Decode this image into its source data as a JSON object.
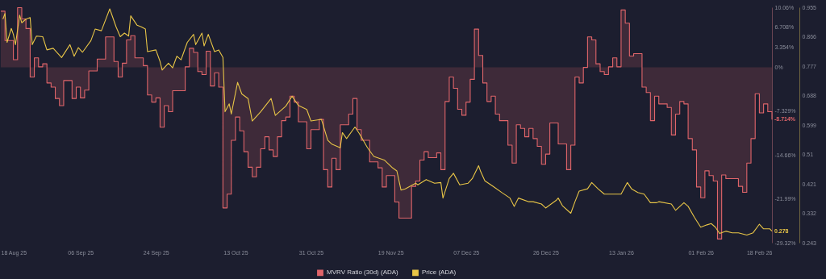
{
  "chart_data": {
    "type": "line",
    "legend": "bottom",
    "grid": false,
    "xlim": [
      "2025-08-18",
      "2026-02-18"
    ],
    "xticks": [
      {
        "value": "2025-08-18",
        "label": "18 Aug 25"
      },
      {
        "value": "2025-09-06",
        "label": "06 Sep 25"
      },
      {
        "value": "2025-09-24",
        "label": "24 Sep 25"
      },
      {
        "value": "2025-10-13",
        "label": "13 Oct 25"
      },
      {
        "value": "2025-10-31",
        "label": "31 Oct 25"
      },
      {
        "value": "2025-11-19",
        "label": "19 Nov 25"
      },
      {
        "value": "2025-12-07",
        "label": "07 Dec 25"
      },
      {
        "value": "2025-12-26",
        "label": "26 Dec 25"
      },
      {
        "value": "2026-01-13",
        "label": "13 Jan 26"
      },
      {
        "value": "2026-02-01",
        "label": "01 Feb 26"
      },
      {
        "value": "2026-02-18",
        "label": "18 Feb 26"
      }
    ],
    "ylim": [
      -29.32,
      10.06
    ],
    "yticks": [
      {
        "value": 10.06,
        "label": "10.06%"
      },
      {
        "value": 6.708,
        "label": "6.708%"
      },
      {
        "value": 3.354,
        "label": "3.354%"
      },
      {
        "value": 0,
        "label": "0%"
      },
      {
        "value": -7.329,
        "label": "-7.329%"
      },
      {
        "value": -14.66,
        "label": "-14.66%"
      },
      {
        "value": -21.99,
        "label": "-21.99%"
      },
      {
        "value": -29.32,
        "label": "-29.32%"
      }
    ],
    "y2lim": [
      0.243,
      0.955
    ],
    "y2ticks": [
      0.955,
      0.866,
      0.777,
      0.688,
      0.599,
      0.51,
      0.421,
      0.332,
      0.243
    ],
    "series": [
      {
        "name": "MVRV Ratio (30d) (ADA)",
        "type": "step",
        "color": "#e0656a",
        "x": [
          "2025-08-18",
          "2025-08-19",
          "2025-08-21",
          "2025-08-22",
          "2025-08-23",
          "2025-08-24",
          "2025-08-25",
          "2025-08-26",
          "2025-08-27",
          "2025-08-28",
          "2025-08-29",
          "2025-08-30",
          "2025-08-31",
          "2025-09-01",
          "2025-09-02",
          "2025-09-04",
          "2025-09-05",
          "2025-09-06",
          "2025-09-07",
          "2025-09-08",
          "2025-09-10",
          "2025-09-12",
          "2025-09-14",
          "2025-09-15",
          "2025-09-16",
          "2025-09-17",
          "2025-09-18",
          "2025-09-19",
          "2025-09-21",
          "2025-09-22",
          "2025-09-23",
          "2025-09-24",
          "2025-09-25",
          "2025-09-26",
          "2025-09-27",
          "2025-09-28",
          "2025-10-01",
          "2025-10-02",
          "2025-10-03",
          "2025-10-04",
          "2025-10-05",
          "2025-10-06",
          "2025-10-07",
          "2025-10-08",
          "2025-10-09",
          "2025-10-10",
          "2025-10-11",
          "2025-10-12",
          "2025-10-13",
          "2025-10-14",
          "2025-10-15",
          "2025-10-16",
          "2025-10-17",
          "2025-10-18",
          "2025-10-19",
          "2025-10-20",
          "2025-10-21",
          "2025-10-22",
          "2025-10-23",
          "2025-10-24",
          "2025-10-25",
          "2025-10-26",
          "2025-10-27",
          "2025-10-28",
          "2025-10-30",
          "2025-10-31",
          "2025-11-02",
          "2025-11-03",
          "2025-11-04",
          "2025-11-05",
          "2025-11-06",
          "2025-11-07",
          "2025-11-09",
          "2025-11-10",
          "2025-11-11",
          "2025-11-12",
          "2025-11-14",
          "2025-11-16",
          "2025-11-17",
          "2025-11-18",
          "2025-11-20",
          "2025-11-21",
          "2025-11-24",
          "2025-11-25",
          "2025-11-26",
          "2025-11-27",
          "2025-11-28",
          "2025-11-30",
          "2025-12-01",
          "2025-12-02",
          "2025-12-03",
          "2025-12-04",
          "2025-12-05",
          "2025-12-06",
          "2025-12-07",
          "2025-12-08",
          "2025-12-09",
          "2025-12-10",
          "2025-12-11",
          "2025-12-12",
          "2025-12-13",
          "2025-12-14",
          "2025-12-15",
          "2025-12-17",
          "2025-12-18",
          "2025-12-19",
          "2025-12-20",
          "2025-12-21",
          "2025-12-22",
          "2025-12-23",
          "2025-12-24",
          "2025-12-25",
          "2025-12-26",
          "2025-12-27",
          "2025-12-29",
          "2025-12-31",
          "2026-01-01",
          "2026-01-02",
          "2026-01-03",
          "2026-01-04",
          "2026-01-05",
          "2026-01-06",
          "2026-01-07",
          "2026-01-08",
          "2026-01-09",
          "2026-01-10",
          "2026-01-11",
          "2026-01-12",
          "2026-01-13",
          "2026-01-14",
          "2026-01-15",
          "2026-01-16",
          "2026-01-18",
          "2026-01-19",
          "2026-01-20",
          "2026-01-21",
          "2026-01-22",
          "2026-01-24",
          "2026-01-25",
          "2026-01-26",
          "2026-01-27",
          "2026-01-28",
          "2026-01-29",
          "2026-01-30",
          "2026-01-31",
          "2026-02-01",
          "2026-02-02",
          "2026-02-03",
          "2026-02-04",
          "2026-02-05",
          "2026-02-06",
          "2026-02-07",
          "2026-02-10",
          "2026-02-11",
          "2026-02-12",
          "2026-02-13",
          "2026-02-14",
          "2026-02-15",
          "2026-02-16",
          "2026-02-17",
          "2026-02-18"
        ],
        "values": [
          9.4,
          4.5,
          1.3,
          10.0,
          8.1,
          6.5,
          -1.6,
          1.6,
          0.1,
          0.6,
          -2.6,
          -3.3,
          -5.2,
          -6.4,
          -2.2,
          -5.2,
          -3.3,
          -5.1,
          -3.8,
          -0.6,
          1.4,
          5.1,
          1.0,
          -1.6,
          0.7,
          4.6,
          5.3,
          1.6,
          0.3,
          -4.6,
          -5.8,
          -5.1,
          -10.0,
          -6.4,
          -7.4,
          -3.9,
          0.1,
          3.2,
          2.5,
          -0.7,
          -1.2,
          2.7,
          -3.1,
          -0.9,
          -3.3,
          -23.5,
          -21.2,
          -12.2,
          -8.3,
          -10.6,
          -14.1,
          -16.7,
          -18.3,
          -16.7,
          -13.6,
          -11.6,
          -13.8,
          -14.9,
          -11.6,
          -8.9,
          -8.3,
          -4.8,
          -5.8,
          -9.1,
          -13.6,
          -10.4,
          -8.7,
          -17.1,
          -20.0,
          -15.2,
          -17.1,
          -9.6,
          -7.8,
          -5.2,
          -10.4,
          -12.2,
          -15.8,
          -16.8,
          -20.0,
          -18.1,
          -22.5,
          -25.2,
          -19.9,
          -19.0,
          -15.5,
          -14.1,
          -15.1,
          -14.3,
          -17.1,
          -5.7,
          -1.6,
          -3.5,
          -7.0,
          -8.0,
          -5.8,
          -2.0,
          6.4,
          2.0,
          -2.6,
          -5.7,
          -4.8,
          -7.8,
          -8.9,
          -13.0,
          -16.0,
          -9.6,
          -10.2,
          -11.6,
          -10.2,
          -11.9,
          -13.2,
          -16.2,
          -14.5,
          -9.3,
          -12.8,
          -17.1,
          -13.0,
          -1.6,
          -2.6,
          0,
          5.1,
          4.6,
          0.6,
          -0.7,
          -1.2,
          0.1,
          1.6,
          0.1,
          9.6,
          7.4,
          1.9,
          2.3,
          -3.3,
          -4.2,
          -8.9,
          -4.8,
          -6.1,
          -6.7,
          -11.3,
          -7.8,
          -5.7,
          -6.1,
          -11.9,
          -13.8,
          -20.0,
          -21.8,
          -17.3,
          -18.1,
          -19.0,
          -28.7,
          -18.0,
          -18.6,
          -19.9,
          -20.9,
          -16.0,
          -11.9,
          -4.4,
          -7.6,
          -6.1,
          -7.4,
          -8.714
        ],
        "value_labels": [
          null,
          null,
          null,
          null,
          null,
          null,
          null,
          null,
          null,
          null,
          null,
          null,
          null,
          null,
          null,
          null,
          null,
          null,
          null,
          null,
          null,
          null,
          null,
          null,
          null,
          null,
          null,
          null,
          null,
          null,
          null,
          null,
          null,
          null,
          null,
          null,
          null,
          null,
          null,
          null,
          null,
          null,
          null,
          null,
          null,
          null,
          null,
          null,
          null,
          null,
          null,
          null,
          null,
          null,
          null,
          null,
          null,
          null,
          null,
          null,
          null,
          null,
          null,
          null,
          null,
          null,
          null,
          null,
          null,
          null,
          null,
          null,
          null,
          null,
          null,
          null,
          null,
          null,
          null,
          null,
          null,
          null,
          null,
          null,
          null,
          null,
          null,
          null,
          null,
          null,
          null,
          null,
          null,
          null,
          null,
          null,
          null,
          null,
          null,
          null,
          null,
          null,
          null,
          null,
          null,
          null,
          null,
          null,
          null,
          null,
          null,
          null,
          null,
          null,
          null,
          null,
          null,
          null,
          null,
          null,
          null,
          null,
          null,
          null,
          null,
          null,
          null,
          null,
          null,
          null,
          null,
          null,
          null,
          null,
          null,
          null,
          null,
          null,
          null,
          null,
          null,
          null,
          null,
          null,
          null,
          null,
          null,
          null,
          null,
          null,
          null,
          null,
          null,
          null,
          null,
          null,
          null,
          null,
          null,
          null,
          "-8.714%"
        ]
      },
      {
        "name": "Price (ADA)",
        "axis": "y2",
        "color": "#e8c547",
        "x": [
          "2025-08-18T12:00",
          "2025-08-19",
          "2025-08-19T12:00",
          "2025-08-20T12:00",
          "2025-08-21",
          "2025-08-21T12:00",
          "2025-08-22T12:00",
          "2025-08-23",
          "2025-08-24",
          "2025-08-25",
          "2025-08-25T12:00",
          "2025-08-26T12:00",
          "2025-08-28",
          "2025-08-29",
          "2025-08-30T12:00",
          "2025-09-01T12:00",
          "2025-09-03T12:00",
          "2025-09-04T12:00",
          "2025-09-05T12:00",
          "2025-09-06T12:00",
          "2025-09-08T12:00",
          "2025-09-09T12:00",
          "2025-09-11",
          "2025-09-13",
          "2025-09-14T12:00",
          "2025-09-15T12:00",
          "2025-09-16T12:00",
          "2025-09-17T12:00",
          "2025-09-18",
          "2025-09-19T12:00",
          "2025-09-20T12:00",
          "2025-09-21T12:00",
          "2025-09-22",
          "2025-09-24",
          "2025-09-25",
          "2025-09-25T12:00",
          "2025-09-27",
          "2025-09-28",
          "2025-09-29",
          "2025-09-30",
          "2025-10-01T12:00",
          "2025-10-03",
          "2025-10-03T12:00",
          "2025-10-05",
          "2025-10-05T12:00",
          "2025-10-06T12:00",
          "2025-10-08",
          "2025-10-09",
          "2025-10-10",
          "2025-10-10T12:00",
          "2025-10-11T12:00",
          "2025-10-12",
          "2025-10-13T12:00",
          "2025-10-14T12:00",
          "2025-10-16",
          "2025-10-17",
          "2025-10-19",
          "2025-10-21T12:00",
          "2025-10-22T12:00",
          "2025-10-25",
          "2025-10-26T12:00",
          "2025-10-28",
          "2025-10-30",
          "2025-10-31",
          "2025-11-02T12:00",
          "2025-11-04",
          "2025-11-05",
          "2025-11-07",
          "2025-11-07T12:00",
          "2025-11-08T12:00",
          "2025-11-10T12:00",
          "2025-11-11T12:00",
          "2025-11-13T12:00",
          "2025-11-15",
          "2025-11-17T12:00",
          "2025-11-19T12:00",
          "2025-11-20T12:00",
          "2025-11-21T12:00",
          "2025-11-22T12:00",
          "2025-11-25",
          "2025-11-25T12:00",
          "2025-11-27T12:00",
          "2025-11-29T12:00",
          "2025-12-01",
          "2025-12-01T12:00",
          "2025-12-03",
          "2025-12-04",
          "2025-12-05T12:00",
          "2025-12-07T12:00",
          "2025-12-08T12:00",
          "2025-12-10",
          "2025-12-10T12:00",
          "2025-12-11T12:00",
          "2025-12-13T12:00",
          "2025-12-15T12:00",
          "2025-12-17T12:00",
          "2025-12-18T12:00",
          "2025-12-19T12:00",
          "2025-12-22",
          "2025-12-23",
          "2025-12-25",
          "2025-12-26",
          "2025-12-28T12:00",
          "2025-12-29",
          "2025-12-30",
          "2026-01-01",
          "2026-01-02",
          "2026-01-03",
          "2026-01-05",
          "2026-01-06",
          "2026-01-07T12:00",
          "2026-01-09",
          "2026-01-11T12:00",
          "2026-01-13",
          "2026-01-14T12:00",
          "2026-01-15T12:00",
          "2026-01-17",
          "2026-01-18T12:00",
          "2026-01-20",
          "2026-01-21T12:00",
          "2026-01-22",
          "2026-01-25",
          "2026-01-26",
          "2026-01-28",
          "2026-01-29",
          "2026-01-30T12:00",
          "2026-02-01",
          "2026-02-02T12:00",
          "2026-02-03T12:00",
          "2026-02-04T12:00",
          "2026-02-05T12:00",
          "2026-02-07",
          "2026-02-08T12:00",
          "2026-02-10",
          "2026-02-12",
          "2026-02-13T12:00",
          "2026-02-15",
          "2026-02-16",
          "2026-02-17T12:00",
          "2026-02-18"
        ],
        "values": [
          0.919,
          0.936,
          0.849,
          0.891,
          0.873,
          0.842,
          0.931,
          0.908,
          0.919,
          0.924,
          0.842,
          0.868,
          0.866,
          0.826,
          0.831,
          0.803,
          0.842,
          0.807,
          0.833,
          0.819,
          0.854,
          0.889,
          0.884,
          0.95,
          0.896,
          0.866,
          0.877,
          0.868,
          0.929,
          0.901,
          0.896,
          0.889,
          0.821,
          0.826,
          0.791,
          0.765,
          0.786,
          0.772,
          0.807,
          0.796,
          0.849,
          0.873,
          0.842,
          0.877,
          0.838,
          0.873,
          0.821,
          0.826,
          0.803,
          0.639,
          0.663,
          0.632,
          0.728,
          0.693,
          0.679,
          0.611,
          0.639,
          0.679,
          0.628,
          0.656,
          0.686,
          0.658,
          0.646,
          0.611,
          0.616,
          0.553,
          0.541,
          0.53,
          0.576,
          0.558,
          0.593,
          0.574,
          0.53,
          0.504,
          0.493,
          0.469,
          0.46,
          0.402,
          0.406,
          0.423,
          0.418,
          0.434,
          0.423,
          0.425,
          0.378,
          0.437,
          0.453,
          0.418,
          0.423,
          0.437,
          0.476,
          0.458,
          0.43,
          0.413,
          0.395,
          0.378,
          0.353,
          0.378,
          0.367,
          0.367,
          0.36,
          0.348,
          0.371,
          0.378,
          0.355,
          0.332,
          0.367,
          0.399,
          0.406,
          0.425,
          0.406,
          0.39,
          0.39,
          0.39,
          0.425,
          0.406,
          0.395,
          0.39,
          0.364,
          0.364,
          0.367,
          0.36,
          0.341,
          0.364,
          0.353,
          0.32,
          0.29,
          0.297,
          0.301,
          0.29,
          0.271,
          0.278,
          0.273,
          0.273,
          0.266,
          0.273,
          0.299,
          0.285,
          0.285,
          0.278
        ],
        "value_labels": [
          null,
          null,
          null,
          null,
          null,
          null,
          null,
          null,
          null,
          null,
          null,
          null,
          null,
          null,
          null,
          null,
          null,
          null,
          null,
          null,
          null,
          null,
          null,
          null,
          null,
          null,
          null,
          null,
          null,
          null,
          null,
          null,
          null,
          null,
          null,
          null,
          null,
          null,
          null,
          null,
          null,
          null,
          null,
          null,
          null,
          null,
          null,
          null,
          null,
          null,
          null,
          null,
          null,
          null,
          null,
          null,
          null,
          null,
          null,
          null,
          null,
          null,
          null,
          null,
          null,
          null,
          null,
          null,
          null,
          null,
          null,
          null,
          null,
          null,
          null,
          null,
          null,
          null,
          null,
          null,
          null,
          null,
          null,
          null,
          null,
          null,
          null,
          null,
          null,
          null,
          null,
          null,
          null,
          null,
          null,
          null,
          null,
          null,
          null,
          null,
          null,
          null,
          null,
          null,
          null,
          null,
          null,
          null,
          null,
          null,
          null,
          null,
          null,
          null,
          null,
          null,
          null,
          null,
          null,
          null,
          null,
          null,
          null,
          null,
          null,
          null,
          null,
          null,
          null,
          null,
          null,
          null,
          null,
          null,
          null,
          null,
          null,
          null,
          null,
          "0.278"
        ]
      }
    ]
  }
}
